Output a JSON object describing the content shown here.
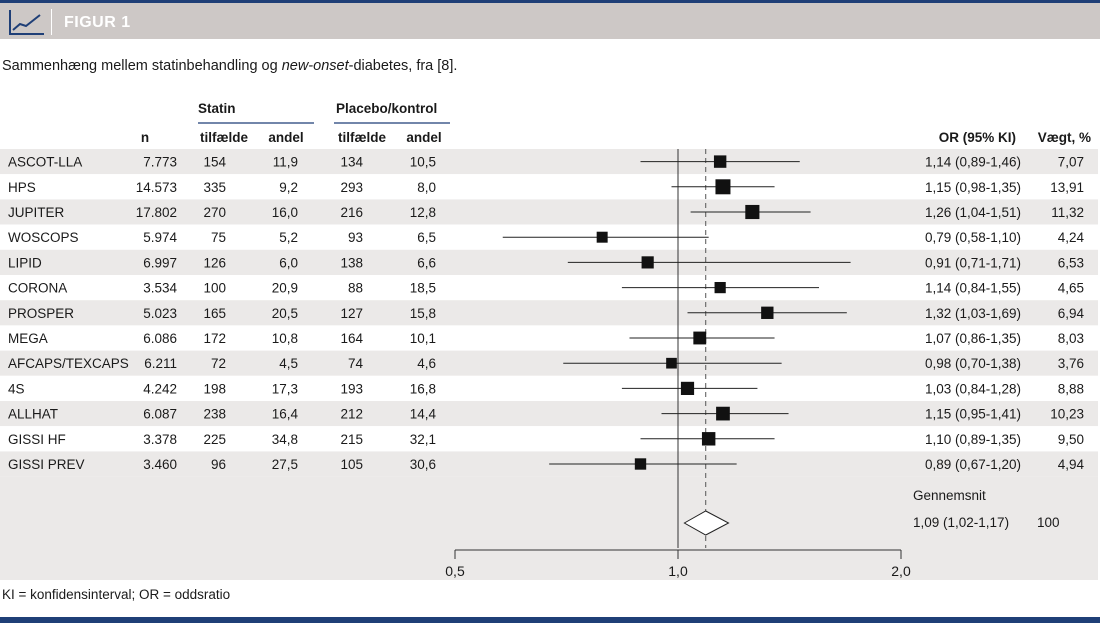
{
  "figure_label": "FIGUR 1",
  "caption": {
    "before": "Sammenhæng mellem statinbehandling og ",
    "italic": "new-onset",
    "after": "-diabetes, fra [8]."
  },
  "footnote": "KI = konfidensinterval; OR = oddsratio",
  "colors": {
    "header_bg": "#cdc8c6",
    "accent_blue": "#1f3f77",
    "row_shade": "#ebe9e8",
    "marker": "#111111"
  },
  "icon": "line-chart-icon",
  "chart_data": {
    "type": "forest",
    "column_headers": {
      "n": "n",
      "statin_group": "Statin",
      "placebo_group": "Placebo/kontrol",
      "cases": "tilfælde",
      "share": "andel",
      "or": "OR (95% KI)",
      "weight": "Vægt, %"
    },
    "studies": [
      {
        "name": "ASCOT-LLA",
        "n": "7.773",
        "statin_cases": "154",
        "statin_share": "11,9",
        "placebo_cases": "134",
        "placebo_share": "10,5",
        "or": 1.14,
        "lo": 0.89,
        "hi": 1.46,
        "or_text": "1,14 (0,89-1,46)",
        "weight": 7.07,
        "weight_text": "7,07"
      },
      {
        "name": "HPS",
        "n": "14.573",
        "statin_cases": "335",
        "statin_share": "9,2",
        "placebo_cases": "293",
        "placebo_share": "8,0",
        "or": 1.15,
        "lo": 0.98,
        "hi": 1.35,
        "or_text": "1,15 (0,98-1,35)",
        "weight": 13.91,
        "weight_text": "13,91"
      },
      {
        "name": "JUPITER",
        "n": "17.802",
        "statin_cases": "270",
        "statin_share": "16,0",
        "placebo_cases": "216",
        "placebo_share": "12,8",
        "or": 1.26,
        "lo": 1.04,
        "hi": 1.51,
        "or_text": "1,26 (1,04-1,51)",
        "weight": 11.32,
        "weight_text": "11,32"
      },
      {
        "name": "WOSCOPS",
        "n": "5.974",
        "statin_cases": "75",
        "statin_share": "5,2",
        "placebo_cases": "93",
        "placebo_share": "6,5",
        "or": 0.79,
        "lo": 0.58,
        "hi": 1.1,
        "or_text": "0,79 (0,58-1,10)",
        "weight": 4.24,
        "weight_text": "4,24"
      },
      {
        "name": "LIPID",
        "n": "6.997",
        "statin_cases": "126",
        "statin_share": "6,0",
        "placebo_cases": "138",
        "placebo_share": "6,6",
        "or": 0.91,
        "lo": 0.71,
        "hi": 1.71,
        "or_text": "0,91 (0,71-1,71)",
        "weight": 6.53,
        "weight_text": "6,53"
      },
      {
        "name": "CORONA",
        "n": "3.534",
        "statin_cases": "100",
        "statin_share": "20,9",
        "placebo_cases": "88",
        "placebo_share": "18,5",
        "or": 1.14,
        "lo": 0.84,
        "hi": 1.55,
        "or_text": "1,14 (0,84-1,55)",
        "weight": 4.65,
        "weight_text": "4,65"
      },
      {
        "name": "PROSPER",
        "n": "5.023",
        "statin_cases": "165",
        "statin_share": "20,5",
        "placebo_cases": "127",
        "placebo_share": "15,8",
        "or": 1.32,
        "lo": 1.03,
        "hi": 1.69,
        "or_text": "1,32 (1,03-1,69)",
        "weight": 6.94,
        "weight_text": "6,94"
      },
      {
        "name": "MEGA",
        "n": "6.086",
        "statin_cases": "172",
        "statin_share": "10,8",
        "placebo_cases": "164",
        "placebo_share": "10,1",
        "or": 1.07,
        "lo": 0.86,
        "hi": 1.35,
        "or_text": "1,07 (0,86-1,35)",
        "weight": 8.03,
        "weight_text": "8,03"
      },
      {
        "name": "AFCAPS/TEXCAPS",
        "n": "6.211",
        "statin_cases": "72",
        "statin_share": "4,5",
        "placebo_cases": "74",
        "placebo_share": "4,6",
        "or": 0.98,
        "lo": 0.7,
        "hi": 1.38,
        "or_text": "0,98 (0,70-1,38)",
        "weight": 3.76,
        "weight_text": "3,76"
      },
      {
        "name": "4S",
        "n": "4.242",
        "statin_cases": "198",
        "statin_share": "17,3",
        "placebo_cases": "193",
        "placebo_share": "16,8",
        "or": 1.03,
        "lo": 0.84,
        "hi": 1.28,
        "or_text": "1,03 (0,84-1,28)",
        "weight": 8.88,
        "weight_text": "8,88"
      },
      {
        "name": "ALLHAT",
        "n": "6.087",
        "statin_cases": "238",
        "statin_share": "16,4",
        "placebo_cases": "212",
        "placebo_share": "14,4",
        "or": 1.15,
        "lo": 0.95,
        "hi": 1.41,
        "or_text": "1,15 (0,95-1,41)",
        "weight": 10.23,
        "weight_text": "10,23"
      },
      {
        "name": "GISSI HF",
        "n": "3.378",
        "statin_cases": "225",
        "statin_share": "34,8",
        "placebo_cases": "215",
        "placebo_share": "32,1",
        "or": 1.1,
        "lo": 0.89,
        "hi": 1.35,
        "or_text": "1,10 (0,89-1,35)",
        "weight": 9.5,
        "weight_text": "9,50"
      },
      {
        "name": "GISSI PREV",
        "n": "3.460",
        "statin_cases": "96",
        "statin_share": "27,5",
        "placebo_cases": "105",
        "placebo_share": "30,6",
        "or": 0.89,
        "lo": 0.67,
        "hi": 1.2,
        "or_text": "0,89 (0,67-1,20)",
        "weight": 4.94,
        "weight_text": "4,94"
      }
    ],
    "pooled": {
      "label": "Gennemsnit",
      "or": 1.09,
      "lo": 1.02,
      "hi": 1.17,
      "or_text": "1,09 (1,02-1,17)",
      "weight_text": "100"
    },
    "x_axis": {
      "min": 0.5,
      "max": 2.0,
      "ticks": [
        0.5,
        1.0,
        2.0
      ],
      "tick_labels": [
        "0,5",
        "1,0",
        "2,0"
      ],
      "reference_line": 1.0,
      "pooled_line": 1.09
    },
    "row_shading": "alternating"
  }
}
